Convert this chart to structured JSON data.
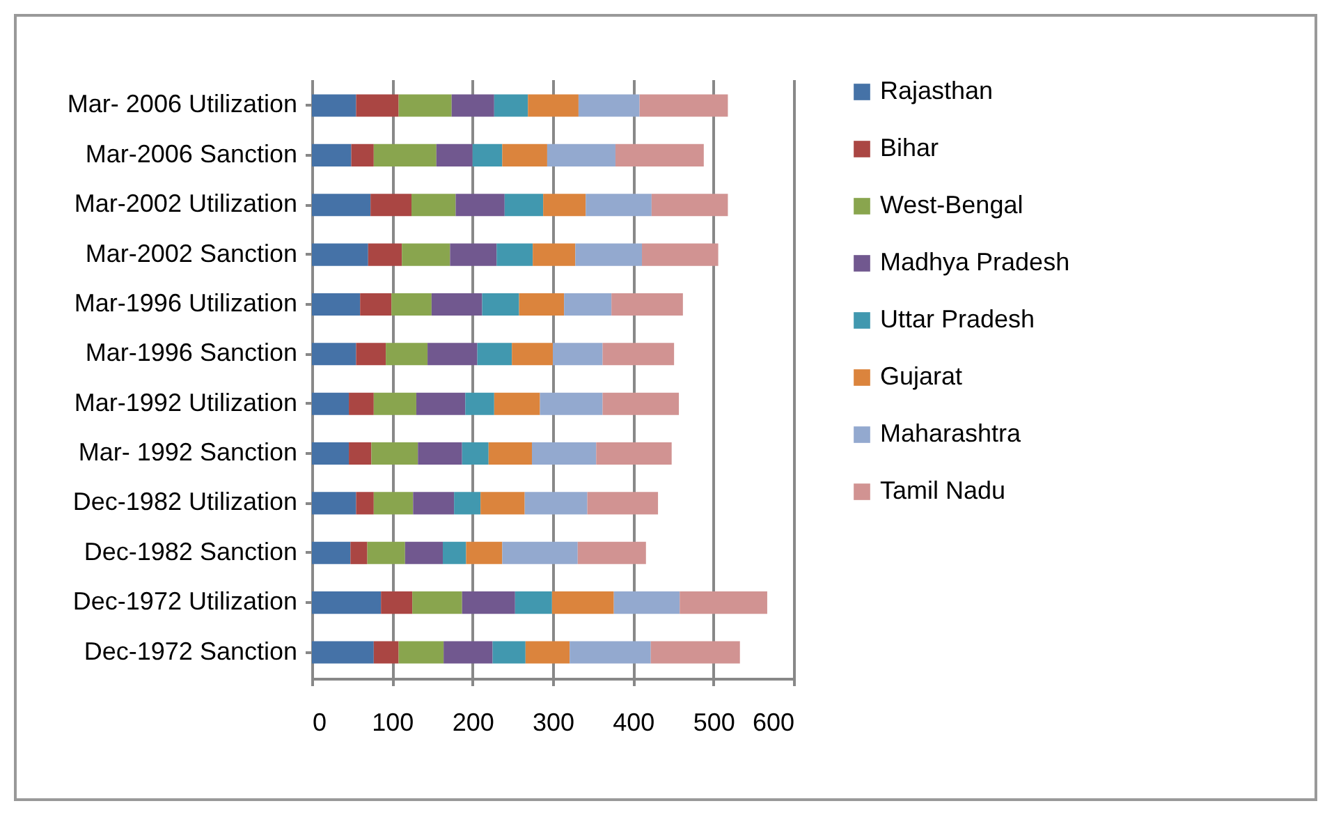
{
  "chart_data": {
    "type": "bar",
    "orientation": "horizontal",
    "stacked": true,
    "categories": [
      "Mar- 2006 Utilization",
      "Mar-2006 Sanction",
      "Mar-2002 Utilization",
      "Mar-2002 Sanction",
      "Mar-1996 Utilization",
      "Mar-1996 Sanction",
      "Mar-1992 Utilization",
      "Mar- 1992 Sanction",
      "Dec-1982 Utilization",
      "Dec-1982 Sanction",
      "Dec-1972 Utilization",
      "Dec-1972 Sanction"
    ],
    "series": [
      {
        "name": "Rajasthan",
        "color": "#4572a7",
        "values": [
          55,
          49,
          73,
          70,
          60,
          55,
          46,
          46,
          55,
          48,
          86,
          77
        ]
      },
      {
        "name": "Bihar",
        "color": "#aa4643",
        "values": [
          53,
          28,
          51,
          42,
          39,
          37,
          31,
          28,
          22,
          21,
          39,
          31
        ]
      },
      {
        "name": "West-Bengal",
        "color": "#89a54e",
        "values": [
          66,
          78,
          55,
          60,
          50,
          52,
          53,
          58,
          49,
          47,
          62,
          56
        ]
      },
      {
        "name": "Madhya Pradesh",
        "color": "#71588f",
        "values": [
          53,
          45,
          61,
          58,
          63,
          62,
          61,
          55,
          51,
          47,
          66,
          61
        ]
      },
      {
        "name": "Uttar Pradesh",
        "color": "#4198af",
        "values": [
          42,
          37,
          48,
          45,
          46,
          43,
          36,
          33,
          33,
          29,
          46,
          41
        ]
      },
      {
        "name": "Gujarat",
        "color": "#db843d",
        "values": [
          63,
          56,
          53,
          53,
          56,
          51,
          57,
          54,
          55,
          45,
          77,
          55
        ]
      },
      {
        "name": "Maharashtra",
        "color": "#93a9cf",
        "values": [
          76,
          85,
          82,
          83,
          59,
          62,
          78,
          80,
          78,
          94,
          82,
          101
        ]
      },
      {
        "name": "Tamil Nadu",
        "color": "#d19392",
        "values": [
          110,
          110,
          95,
          95,
          89,
          89,
          95,
          94,
          88,
          85,
          109,
          111
        ]
      }
    ],
    "xlim": [
      0,
      600
    ],
    "xticks": [
      0,
      100,
      200,
      300,
      400,
      500,
      600
    ],
    "grid": "x",
    "legend": "right"
  }
}
